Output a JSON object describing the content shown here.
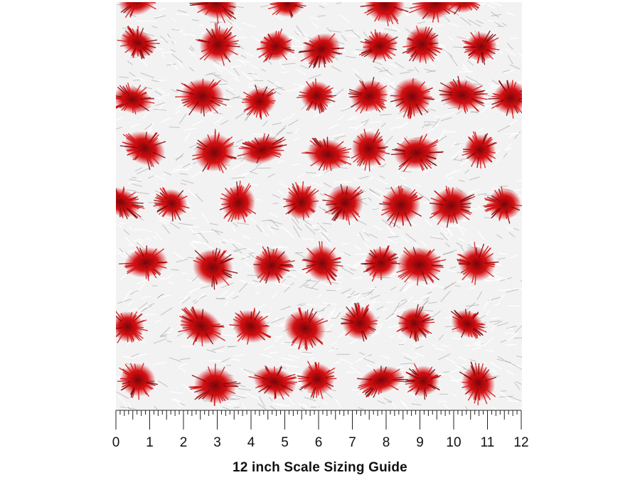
{
  "swatch": {
    "pattern_name": "red-spotted-white-fur",
    "colors": {
      "fur_base": "#f2f2f2",
      "fur_shadow": "#9a9a9a",
      "spot": "#d40f12",
      "spot_dark": "#7a0508"
    }
  },
  "ruler": {
    "labels": [
      "0",
      "1",
      "2",
      "3",
      "4",
      "5",
      "6",
      "7",
      "8",
      "9",
      "10",
      "11",
      "12"
    ],
    "unit": "inch",
    "ticks_per_unit": 8
  },
  "caption": {
    "text": "12 inch Scale Sizing Guide"
  }
}
